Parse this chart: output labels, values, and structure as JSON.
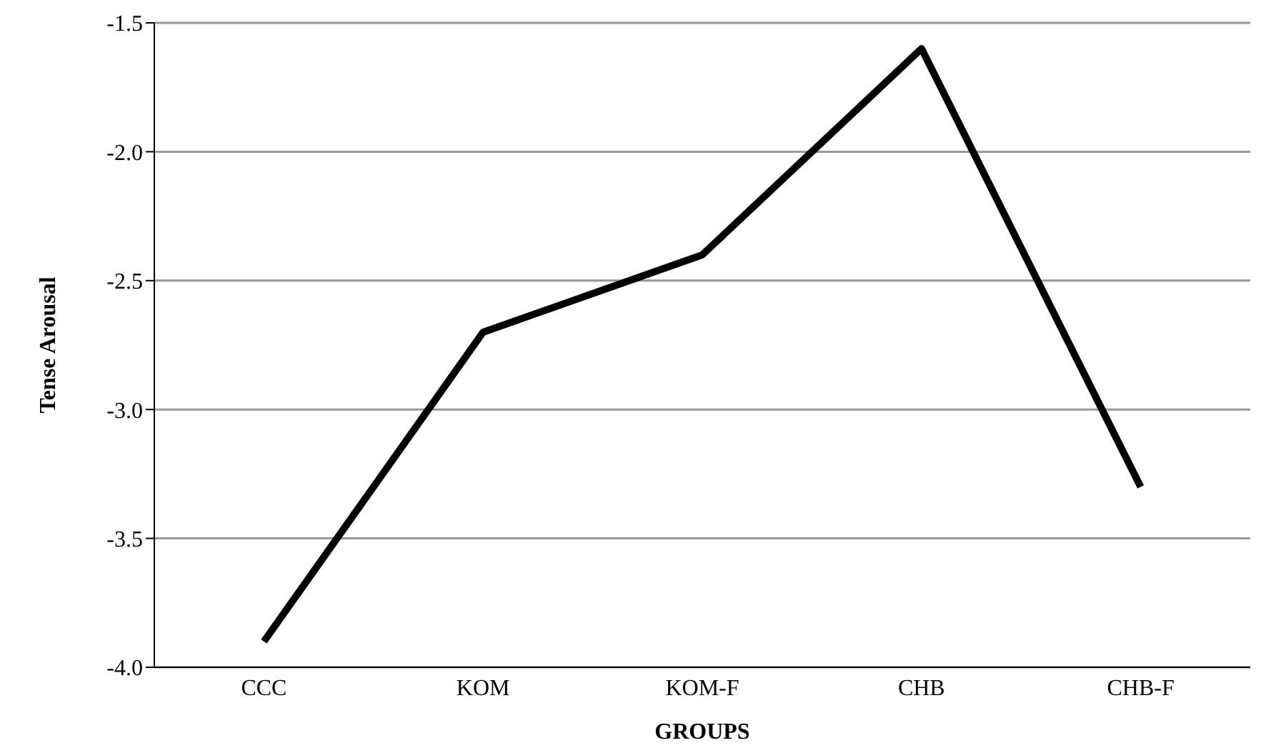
{
  "chart_data": {
    "type": "line",
    "xlabel": "GROUPS",
    "ylabel": "Tense Arousal",
    "categories": [
      "CCC",
      "KOM",
      "KOM-F",
      "CHB",
      "CHB-F"
    ],
    "series": [
      {
        "color": "#000000",
        "values": [
          -3.9,
          -2.7,
          -2.4,
          -1.6,
          -3.3
        ]
      }
    ],
    "ylim": [
      -4.0,
      -1.5
    ],
    "yticks": [
      {
        "value": -4.0,
        "label": "-4.0"
      },
      {
        "value": -3.5,
        "label": "-3.5"
      },
      {
        "value": -3.0,
        "label": "-3.0"
      },
      {
        "value": -2.5,
        "label": "-2.5"
      },
      {
        "value": -2.0,
        "label": "-2.0"
      },
      {
        "value": -1.5,
        "label": "-1.5"
      }
    ],
    "grid": "y",
    "legend": false,
    "marker": "none",
    "line_style": "solid"
  }
}
